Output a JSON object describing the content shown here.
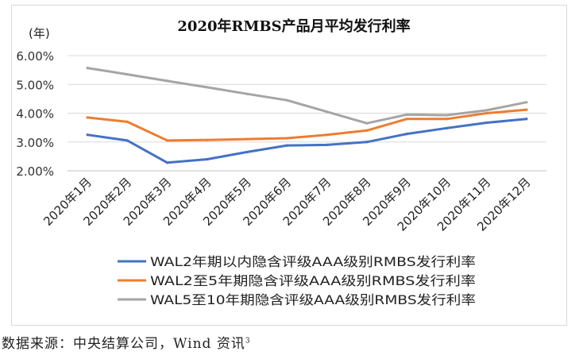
{
  "chart_data": {
    "type": "line",
    "title": "2020年RMBS产品月平均发行利率",
    "ylabel": "(年)",
    "categories": [
      "2020年1月",
      "2020年2月",
      "2020年3月",
      "2020年4月",
      "2020年5月",
      "2020年6月",
      "2020年7月",
      "2020年8月",
      "2020年9月",
      "2020年10月",
      "2020年11月",
      "2020年12月"
    ],
    "yticks": [
      "2.00%",
      "3.00%",
      "4.00%",
      "5.00%",
      "6.00%"
    ],
    "ylim": [
      2,
      6
    ],
    "grid": true,
    "legend_position": "bottom",
    "series": [
      {
        "name": "WAL2年期以内隐含评级AAA级别RMBS发行利率",
        "color": "#4472C4",
        "values": [
          3.25,
          3.05,
          2.28,
          2.4,
          2.65,
          2.88,
          2.9,
          3.0,
          3.28,
          3.48,
          3.67,
          3.8
        ]
      },
      {
        "name": "WAL2至5年期隐含评级AAA级别RMBS发行利率",
        "color": "#ED7D31",
        "values": [
          3.85,
          3.7,
          3.05,
          3.07,
          3.1,
          3.13,
          3.25,
          3.4,
          3.8,
          3.8,
          4.0,
          4.12
        ]
      },
      {
        "name": "WAL5至10年期隐含评级AAA级别RMBS发行利率",
        "color": "#A5A5A5",
        "values": [
          5.57,
          5.35,
          5.12,
          4.9,
          4.67,
          4.45,
          4.05,
          3.65,
          3.95,
          3.93,
          4.1,
          4.38
        ]
      }
    ]
  },
  "source": {
    "text": "数据来源：中央结算公司，Wind 资讯",
    "footnote": "3"
  }
}
